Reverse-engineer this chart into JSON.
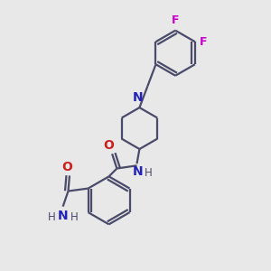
{
  "background_color": "#e8e8e8",
  "bond_color": "#4a4a6a",
  "nitrogen_color": "#2222bb",
  "oxygen_color": "#cc2020",
  "fluorine_color": "#cc00cc",
  "bond_width": 1.6,
  "figsize": [
    3.0,
    3.0
  ],
  "dpi": 100,
  "xlim": [
    0,
    10
  ],
  "ylim": [
    0,
    10
  ]
}
